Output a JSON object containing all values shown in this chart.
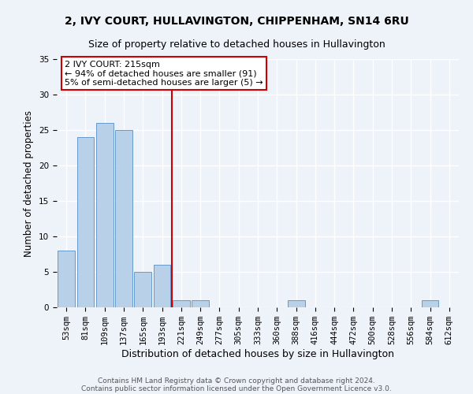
{
  "title1": "2, IVY COURT, HULLAVINGTON, CHIPPENHAM, SN14 6RU",
  "title2": "Size of property relative to detached houses in Hullavington",
  "xlabel": "Distribution of detached houses by size in Hullavington",
  "ylabel": "Number of detached properties",
  "categories": [
    "53sqm",
    "81sqm",
    "109sqm",
    "137sqm",
    "165sqm",
    "193sqm",
    "221sqm",
    "249sqm",
    "277sqm",
    "305sqm",
    "333sqm",
    "360sqm",
    "388sqm",
    "416sqm",
    "444sqm",
    "472sqm",
    "500sqm",
    "528sqm",
    "556sqm",
    "584sqm",
    "612sqm"
  ],
  "values": [
    8,
    24,
    26,
    25,
    5,
    6,
    1,
    1,
    0,
    0,
    0,
    0,
    1,
    0,
    0,
    0,
    0,
    0,
    0,
    1,
    0
  ],
  "bar_color": "#b8d0e8",
  "bar_edge_color": "#6699cc",
  "vline_x": 5.5,
  "vline_color": "#cc0000",
  "annotation_text": "2 IVY COURT: 215sqm\n← 94% of detached houses are smaller (91)\n5% of semi-detached houses are larger (5) →",
  "annotation_box_color": "white",
  "annotation_box_edge": "#cc0000",
  "ylim": [
    0,
    35
  ],
  "yticks": [
    0,
    5,
    10,
    15,
    20,
    25,
    30,
    35
  ],
  "footer1": "Contains HM Land Registry data © Crown copyright and database right 2024.",
  "footer2": "Contains public sector information licensed under the Open Government Licence v3.0.",
  "bg_color": "#eef2f9",
  "grid_color": "white",
  "title_fontsize": 10,
  "subtitle_fontsize": 9,
  "ylabel_fontsize": 8.5,
  "xlabel_fontsize": 9,
  "tick_fontsize": 7.5,
  "annotation_fontsize": 8,
  "footer_fontsize": 6.5
}
